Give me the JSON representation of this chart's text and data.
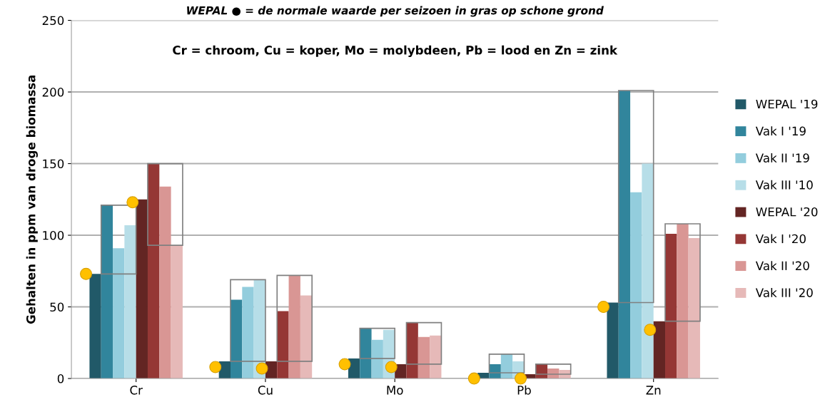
{
  "chart_data": {
    "type": "bar",
    "title": "WEPAL ● = de normale waarde per seizoen in gras op schone grond",
    "ylabel": "Gehalten in ppm van droge biomassa",
    "annotations": [
      "Cr = chroom, Cu = koper, Mo = molybdeen, Pb = lood en Zn = zink"
    ],
    "categories": [
      "Cr",
      "Cu",
      "Mo",
      "Pb",
      "Zn"
    ],
    "series": [
      {
        "name": "WEPAL '19",
        "color": "#215968",
        "values": [
          73,
          12,
          14,
          4,
          53
        ]
      },
      {
        "name": "Vak I '19",
        "color": "#31859c",
        "values": [
          121,
          55,
          35,
          10,
          201
        ]
      },
      {
        "name": "Vak II '19",
        "color": "#93cddd",
        "values": [
          91,
          64,
          27,
          17,
          130
        ]
      },
      {
        "name": "Vak III '10",
        "color": "#b7dee8",
        "values": [
          107,
          69,
          34,
          12,
          150
        ]
      },
      {
        "name": "WEPAL '20",
        "color": "#632523",
        "values": [
          125,
          12,
          10,
          3,
          40
        ]
      },
      {
        "name": "Vak I '20",
        "color": "#953735",
        "values": [
          150,
          47,
          39,
          10,
          101
        ]
      },
      {
        "name": "Vak II '20",
        "color": "#d99694",
        "values": [
          134,
          72,
          29,
          7,
          108
        ]
      },
      {
        "name": "Vak III '20",
        "color": "#e6b9b8",
        "values": [
          93,
          58,
          30,
          6,
          98
        ]
      },
      {
        "type": "scatter",
        "color": "#ffc000",
        "x": [
          "Cr",
          "Cu",
          "Mo",
          "Pb",
          "Zn"
        ],
        "values": [
          73,
          8,
          10,
          0,
          50
        ]
      },
      {
        "type": "scatter",
        "color": "#ffc000",
        "x": [
          "Cr",
          "Cu",
          "Mo",
          "Pb",
          "Zn"
        ],
        "values": [
          123,
          7,
          8,
          0,
          34
        ]
      }
    ],
    "ylim": [
      0,
      250
    ],
    "yticks": [
      0,
      50,
      100,
      150,
      200,
      250
    ],
    "grid": "y",
    "legend": "right",
    "marker": "circle"
  }
}
